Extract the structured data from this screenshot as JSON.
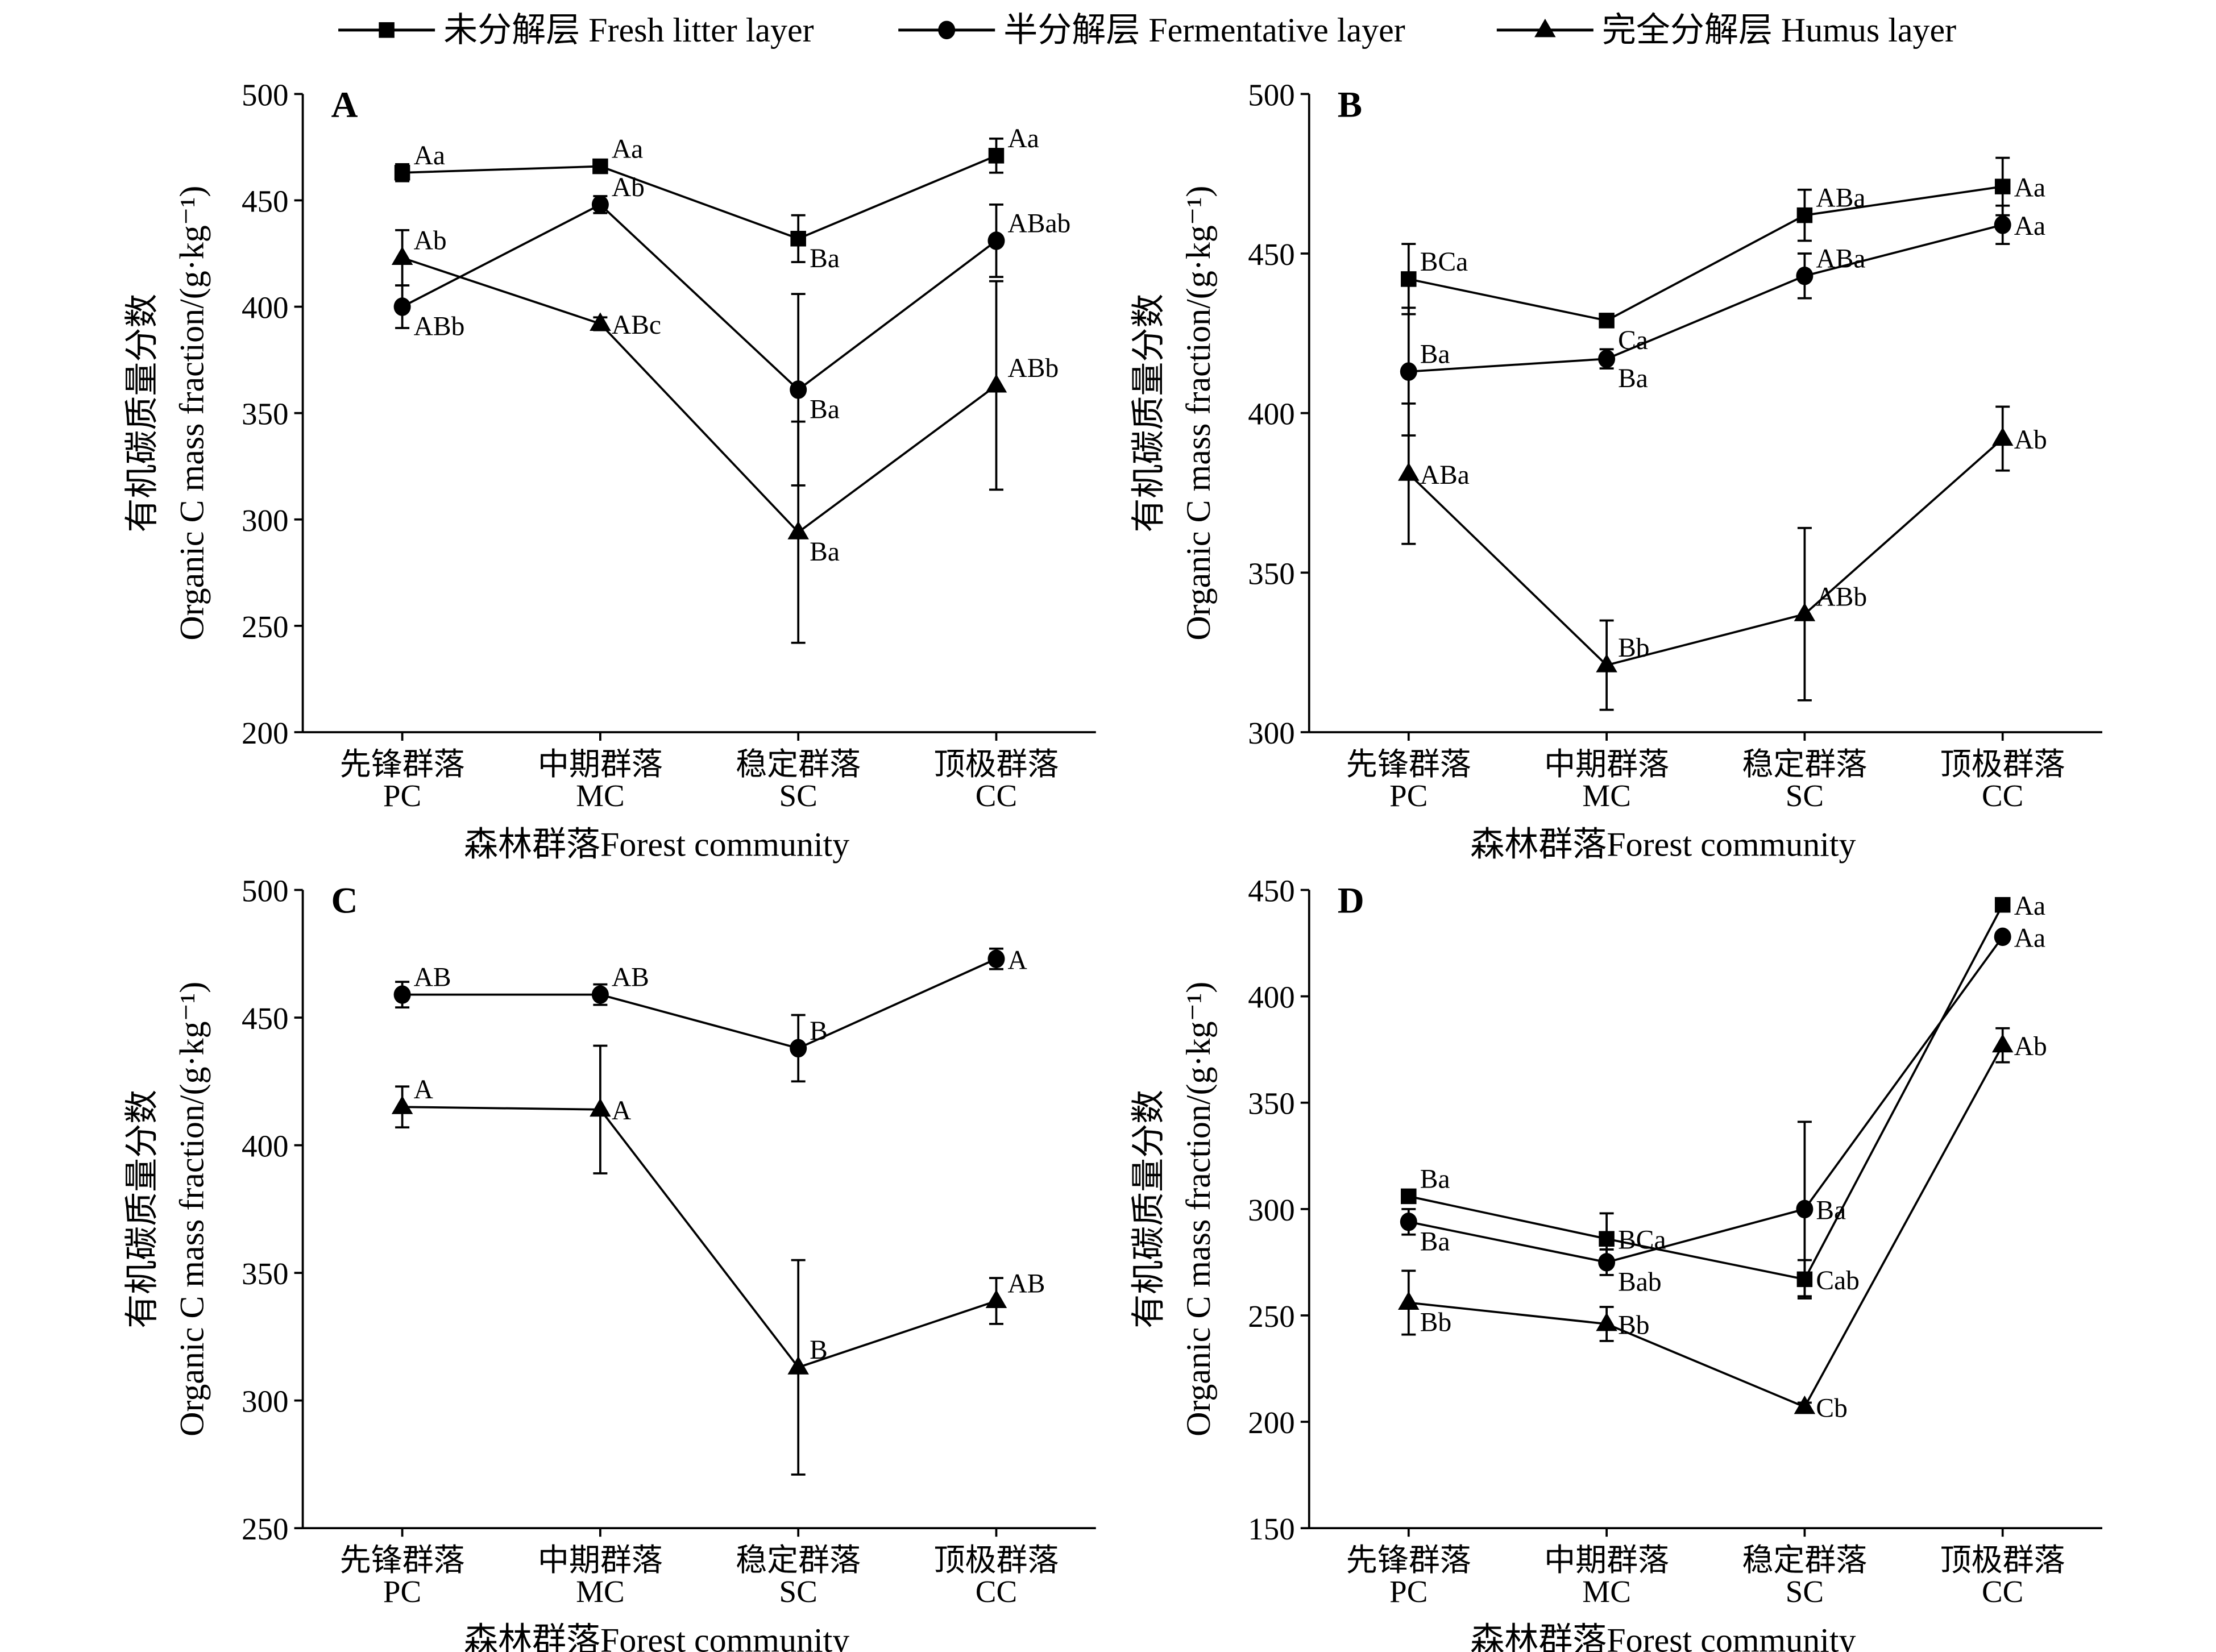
{
  "chart_data": [
    {
      "type": "line",
      "panel_label": "A",
      "categories": [
        [
          "先锋群落",
          "PC"
        ],
        [
          "中期群落",
          "MC"
        ],
        [
          "稳定群落",
          "SC"
        ],
        [
          "顶极群落",
          "CC"
        ]
      ],
      "xlabel": "森林群落Forest community",
      "ylabel": [
        "有机碳质量分数",
        "Organic C mass fraction/(g·kg⁻¹)"
      ],
      "ylim": [
        200,
        500
      ],
      "yticks": [
        200,
        250,
        300,
        350,
        400,
        450,
        500
      ],
      "series": [
        {
          "name": "未分解层 Fresh litter layer",
          "marker": "square",
          "values": [
            463,
            466,
            432,
            471
          ],
          "err": [
            4,
            3,
            11,
            8
          ],
          "labels": [
            "Aa",
            "Aa",
            "Ba",
            "Aa"
          ],
          "label_pos": [
            "above",
            "above",
            "below",
            "above"
          ]
        },
        {
          "name": "半分解层 Fermentative layer",
          "marker": "circle",
          "values": [
            400,
            448,
            361,
            431
          ],
          "err": [
            10,
            4,
            45,
            17
          ],
          "labels": [
            "ABb",
            "Ab",
            "Ba",
            "ABab"
          ],
          "label_pos": [
            "below",
            "above",
            "below",
            "above"
          ]
        },
        {
          "name": "完全分解层 Humus layer",
          "marker": "triangle",
          "values": [
            423,
            392,
            294,
            363
          ],
          "err": [
            13,
            3,
            52,
            49
          ],
          "labels": [
            "Ab",
            "ABc",
            "Ba",
            "ABb"
          ],
          "label_pos": [
            "above",
            "right",
            "below",
            "above"
          ]
        }
      ]
    },
    {
      "type": "line",
      "panel_label": "B",
      "categories": [
        [
          "先锋群落",
          "PC"
        ],
        [
          "中期群落",
          "MC"
        ],
        [
          "稳定群落",
          "SC"
        ],
        [
          "顶极群落",
          "CC"
        ]
      ],
      "xlabel": "森林群落Forest community",
      "ylabel": [
        "有机碳质量分数",
        "Organic C mass fraction/(g·kg⁻¹)"
      ],
      "ylim": [
        300,
        500
      ],
      "yticks": [
        300,
        350,
        400,
        450,
        500
      ],
      "series": [
        {
          "name": "未分解层 Fresh litter layer",
          "marker": "square",
          "values": [
            442,
            429,
            462,
            471
          ],
          "err": [
            11,
            1,
            8,
            9
          ],
          "labels": [
            "BCa",
            "Ca",
            "ABa",
            "Aa"
          ],
          "label_pos": [
            "above",
            "below",
            "above",
            "right"
          ]
        },
        {
          "name": "半分解层 Fermentative layer",
          "marker": "circle",
          "values": [
            413,
            417,
            443,
            459
          ],
          "err": [
            20,
            3,
            7,
            6
          ],
          "labels": [
            "Ba",
            "Ba",
            "ABa",
            "Aa"
          ],
          "label_pos": [
            "above",
            "below",
            "above",
            "right"
          ]
        },
        {
          "name": "完全分解层 Humus layer",
          "marker": "triangle",
          "values": [
            381,
            321,
            337,
            392
          ],
          "err": [
            22,
            14,
            27,
            10
          ],
          "labels": [
            "ABa",
            "Bb",
            "ABb",
            "Ab"
          ],
          "label_pos": [
            "right",
            "above",
            "above",
            "right"
          ]
        }
      ]
    },
    {
      "type": "line",
      "panel_label": "C",
      "categories": [
        [
          "先锋群落",
          "PC"
        ],
        [
          "中期群落",
          "MC"
        ],
        [
          "稳定群落",
          "SC"
        ],
        [
          "顶极群落",
          "CC"
        ]
      ],
      "xlabel": "森林群落Forest community",
      "ylabel": [
        "有机碳质量分数",
        "Organic C mass fraction/(g·kg⁻¹)"
      ],
      "ylim": [
        250,
        500
      ],
      "yticks": [
        250,
        300,
        350,
        400,
        450,
        500
      ],
      "series": [
        {
          "name": "半分解层 Fermentative layer",
          "marker": "circle",
          "values": [
            459,
            459,
            438,
            473
          ],
          "err": [
            5,
            4,
            13,
            4
          ],
          "labels": [
            "AB",
            "AB",
            "B",
            "A"
          ],
          "label_pos": [
            "above",
            "above",
            "above",
            "right"
          ]
        },
        {
          "name": "完全分解层 Humus layer",
          "marker": "triangle",
          "values": [
            415,
            414,
            313,
            339
          ],
          "err": [
            8,
            25,
            42,
            9
          ],
          "labels": [
            "A",
            "A",
            "B",
            "AB"
          ],
          "label_pos": [
            "above",
            "right",
            "above",
            "above"
          ]
        }
      ]
    },
    {
      "type": "line",
      "panel_label": "D",
      "categories": [
        [
          "先锋群落",
          "PC"
        ],
        [
          "中期群落",
          "MC"
        ],
        [
          "稳定群落",
          "SC"
        ],
        [
          "顶极群落",
          "CC"
        ]
      ],
      "xlabel": "森林群落Forest community",
      "ylabel": [
        "有机碳质量分数",
        "Organic C mass fraction/(g·kg⁻¹)"
      ],
      "ylim": [
        150,
        450
      ],
      "yticks": [
        150,
        200,
        250,
        300,
        350,
        400,
        450
      ],
      "series": [
        {
          "name": "未分解层 Fresh litter layer",
          "marker": "square",
          "values": [
            306,
            286,
            267,
            443
          ],
          "err": [
            3,
            12,
            9,
            2
          ],
          "labels": [
            "Ba",
            "BCa",
            "Cab",
            "Aa"
          ],
          "label_pos": [
            "above",
            "right",
            "right",
            "right"
          ]
        },
        {
          "name": "半分解层 Fermentative layer",
          "marker": "circle",
          "values": [
            294,
            275,
            300,
            428
          ],
          "err": [
            6,
            6,
            41,
            2
          ],
          "labels": [
            "Ba",
            "Bab",
            "Ba",
            "Aa"
          ],
          "label_pos": [
            "below",
            "below",
            "right",
            "right"
          ]
        },
        {
          "name": "完全分解层 Humus layer",
          "marker": "triangle",
          "values": [
            256,
            246,
            207,
            377
          ],
          "err": [
            15,
            8,
            2,
            8
          ],
          "labels": [
            "Bb",
            "Bb",
            "Cb",
            "Ab"
          ],
          "label_pos": [
            "below",
            "right",
            "right",
            "right"
          ]
        }
      ]
    }
  ],
  "legend": [
    {
      "label": "未分解层 Fresh litter layer",
      "marker": "square"
    },
    {
      "label": "半分解层 Fermentative layer",
      "marker": "circle"
    },
    {
      "label": "完全分解层 Humus layer",
      "marker": "triangle"
    }
  ],
  "colors": {
    "line": "#000000",
    "background": "#ffffff"
  }
}
